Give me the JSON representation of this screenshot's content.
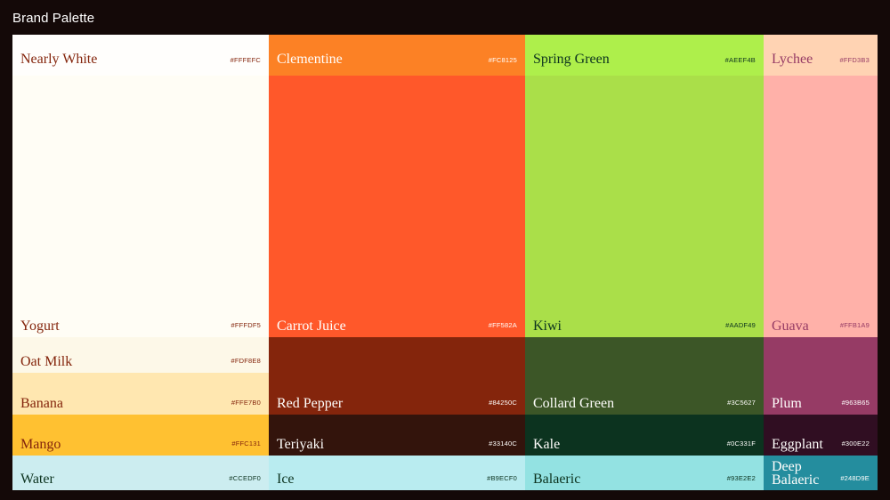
{
  "title": "Brand Palette",
  "columns": [
    {
      "swatches": [
        {
          "name": "Nearly White",
          "hex": "#FFFEFC",
          "color": "#FFFEFC",
          "text": "#84250C"
        },
        {
          "name": "Yogurt",
          "hex": "#FFFDF5",
          "color": "#FFFDF5",
          "text": "#84250C"
        },
        {
          "name": "Oat Milk",
          "hex": "#FDF8E8",
          "color": "#FDF8E8",
          "text": "#84250C"
        },
        {
          "name": "Banana",
          "hex": "#FFE7B0",
          "color": "#FFE7B0",
          "text": "#84250C"
        },
        {
          "name": "Mango",
          "hex": "#FFC131",
          "color": "#FFC131",
          "text": "#84250C"
        },
        {
          "name": "Water",
          "hex": "#CCEDF0",
          "color": "#CCEDF0",
          "text": "#0C331F"
        }
      ]
    },
    {
      "swatches": [
        {
          "name": "Clementine",
          "hex": "#FC8125",
          "color": "#FC8125",
          "text": "#FFFEFC"
        },
        {
          "name": "Carrot Juice",
          "hex": "#FF582A",
          "color": "#FF582A",
          "text": "#FFFEFC"
        },
        {
          "name": "Red Pepper",
          "hex": "#84250C",
          "color": "#84250C",
          "text": "#FFFEFC"
        },
        {
          "name": "Teriyaki",
          "hex": "#33140C",
          "color": "#33140C",
          "text": "#FFFEFC"
        },
        {
          "name": "Ice",
          "hex": "#B9ECF0",
          "color": "#B9ECF0",
          "text": "#0C331F"
        }
      ]
    },
    {
      "swatches": [
        {
          "name": "Spring Green",
          "hex": "#AEEF4B",
          "color": "#AEEF4B",
          "text": "#0C331F"
        },
        {
          "name": "Kiwi",
          "hex": "#AADF49",
          "color": "#AADF49",
          "text": "#0C331F"
        },
        {
          "name": "Collard Green",
          "hex": "#3C5627",
          "color": "#3C5627",
          "text": "#FFFEFC"
        },
        {
          "name": "Kale",
          "hex": "#0C331F",
          "color": "#0C331F",
          "text": "#FFFEFC"
        },
        {
          "name": "Balaeric",
          "hex": "#93E2E2",
          "color": "#93E2E2",
          "text": "#0C331F"
        }
      ]
    },
    {
      "swatches": [
        {
          "name": "Lychee",
          "hex": "#FFD3B3",
          "color": "#FFD3B3",
          "text": "#963B65"
        },
        {
          "name": "Guava",
          "hex": "#FFB1A9",
          "color": "#FFB1A9",
          "text": "#963B65"
        },
        {
          "name": "Plum",
          "hex": "#963B65",
          "color": "#963B65",
          "text": "#FFFEFC"
        },
        {
          "name": "Eggplant",
          "hex": "#300E22",
          "color": "#300E22",
          "text": "#FFFEFC"
        },
        {
          "name": "Deep Balaeric",
          "hex": "#248D9E",
          "color": "#248D9E",
          "text": "#FFFEFC"
        }
      ]
    }
  ]
}
